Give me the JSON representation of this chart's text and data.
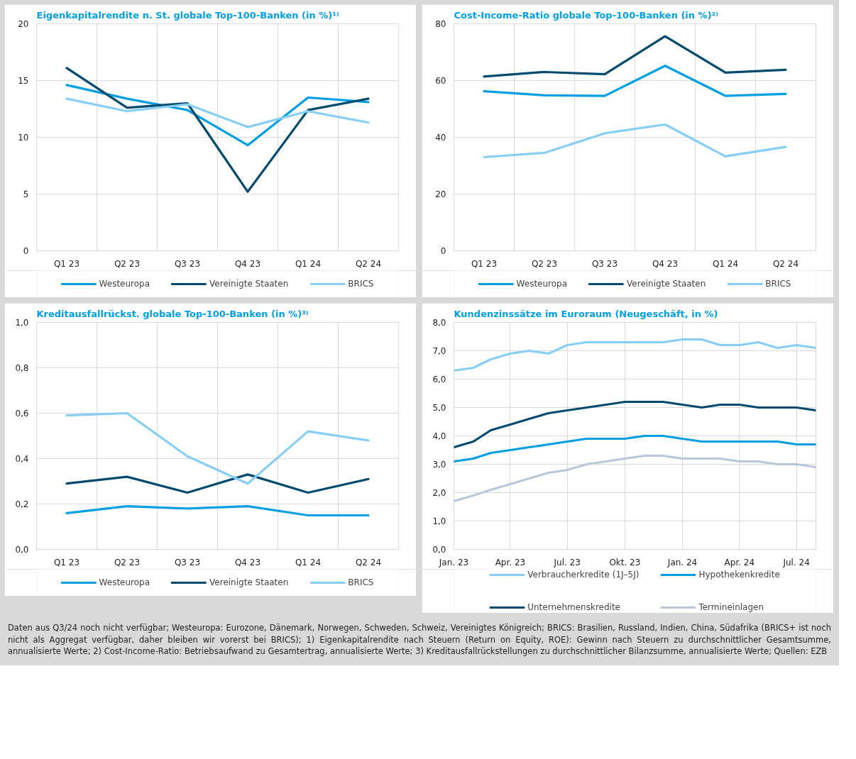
{
  "chart_data": [
    {
      "type": "line",
      "title": "Eigenkapitalrendite n. St. globale Top-100-Banken (in %)¹⁾",
      "categories": [
        "Q1 23",
        "Q2 23",
        "Q3 23",
        "Q4 23",
        "Q1 24",
        "Q2 24"
      ],
      "ylim": [
        0,
        20
      ],
      "yticks": [
        0,
        5,
        10,
        15,
        20
      ],
      "grid": true,
      "legend": "bottom",
      "marker": "none",
      "line_style": "solid",
      "series": [
        {
          "name": "Westeuropa",
          "color": "#009fe3",
          "values": [
            14.6,
            13.4,
            12.4,
            9.3,
            13.5,
            13.1
          ]
        },
        {
          "name": "Vereinigte Staaten",
          "color": "#004a6e",
          "values": [
            16.1,
            12.6,
            13.0,
            5.2,
            12.4,
            13.4
          ]
        },
        {
          "name": "BRICS",
          "color": "#87cef5",
          "values": [
            13.4,
            12.3,
            12.9,
            10.9,
            12.3,
            11.3
          ]
        }
      ]
    },
    {
      "type": "line",
      "title": "Cost-Income-Ratio globale Top-100-Banken (in %)²⁾",
      "categories": [
        "Q1 23",
        "Q2 23",
        "Q3 23",
        "Q4 23",
        "Q1 24",
        "Q2 24"
      ],
      "ylim": [
        0,
        80
      ],
      "yticks": [
        0,
        20,
        40,
        60,
        80
      ],
      "grid": true,
      "legend": "bottom",
      "marker": "none",
      "line_style": "solid",
      "series": [
        {
          "name": "Westeuropa",
          "color": "#009fe3",
          "values": [
            56.2,
            54.8,
            54.6,
            65.2,
            54.6,
            55.3
          ]
        },
        {
          "name": "Vereinigte Staaten",
          "color": "#004a6e",
          "values": [
            61.4,
            63.0,
            62.2,
            75.6,
            62.8,
            63.8
          ]
        },
        {
          "name": "BRICS",
          "color": "#87cef5",
          "values": [
            33.0,
            34.5,
            41.4,
            44.5,
            33.3,
            36.6
          ]
        }
      ]
    },
    {
      "type": "line",
      "title": "Kreditausfallrückst. globale Top-100-Banken (in %)³⁾",
      "categories": [
        "Q1 23",
        "Q2 23",
        "Q3 23",
        "Q4 23",
        "Q1 24",
        "Q2 24"
      ],
      "ylim": [
        0,
        1
      ],
      "yticks": [
        {
          "value": 0,
          "label": "0,0"
        },
        {
          "value": 0.2,
          "label": "0,2"
        },
        {
          "value": 0.4,
          "label": "0,4"
        },
        {
          "value": 0.6,
          "label": "0,6"
        },
        {
          "value": 0.8,
          "label": "0,8"
        },
        {
          "value": 1,
          "label": "1,0"
        }
      ],
      "grid": true,
      "legend": "bottom",
      "marker": "none",
      "line_style": "solid",
      "series": [
        {
          "name": "Westeuropa",
          "color": "#009fe3",
          "values": [
            0.16,
            0.19,
            0.18,
            0.19,
            0.15,
            0.15
          ]
        },
        {
          "name": "Vereinigte Staaten",
          "color": "#004a6e",
          "values": [
            0.29,
            0.32,
            0.25,
            0.33,
            0.25,
            0.31
          ]
        },
        {
          "name": "BRICS",
          "color": "#87cef5",
          "values": [
            0.59,
            0.6,
            0.41,
            0.29,
            0.52,
            0.48
          ]
        }
      ]
    },
    {
      "type": "line",
      "title": "Kundenzinssätze im Euroraum (Neugeschäft, in %)",
      "x": [
        "2023-01",
        "2023-02",
        "2023-03",
        "2023-04",
        "2023-05",
        "2023-06",
        "2023-07",
        "2023-08",
        "2023-09",
        "2023-10",
        "2023-11",
        "2023-12",
        "2024-01",
        "2024-02",
        "2024-03",
        "2024-04",
        "2024-05",
        "2024-06",
        "2024-07",
        "2024-08"
      ],
      "xlim": [
        "2023-01",
        "2024-08"
      ],
      "xticks": [
        {
          "value": "2023-01",
          "label": "Jan. 23"
        },
        {
          "value": "2023-04",
          "label": "Apr. 23"
        },
        {
          "value": "2023-07",
          "label": "Jul. 23"
        },
        {
          "value": "2023-10",
          "label": "Okt. 23"
        },
        {
          "value": "2024-01",
          "label": "Jan. 24"
        },
        {
          "value": "2024-04",
          "label": "Apr. 24"
        },
        {
          "value": "2024-07",
          "label": "Jul. 24"
        }
      ],
      "ylim": [
        0,
        8
      ],
      "yticks": [
        {
          "value": 0,
          "label": "0,0"
        },
        {
          "value": 1,
          "label": "1,0"
        },
        {
          "value": 2,
          "label": "2,0"
        },
        {
          "value": 3,
          "label": "3,0"
        },
        {
          "value": 4,
          "label": "4,0"
        },
        {
          "value": 5,
          "label": "5,0"
        },
        {
          "value": 6,
          "label": "6,0"
        },
        {
          "value": 7,
          "label": "7,0"
        },
        {
          "value": 8,
          "label": "8,0"
        }
      ],
      "grid": true,
      "legend": "bottom",
      "marker": "none",
      "line_style": "solid",
      "series": [
        {
          "name": "Verbraucherkredite (1J–5J)",
          "color": "#87cef5",
          "values": [
            6.3,
            6.4,
            6.7,
            6.9,
            7.0,
            6.9,
            7.2,
            7.3,
            7.3,
            7.3,
            7.3,
            7.3,
            7.4,
            7.4,
            7.2,
            7.2,
            7.3,
            7.1,
            7.2,
            7.1
          ]
        },
        {
          "name": "Hypothekenkredite",
          "color": "#009fe3",
          "values": [
            3.1,
            3.2,
            3.4,
            3.5,
            3.6,
            3.7,
            3.8,
            3.9,
            3.9,
            3.9,
            4.0,
            4.0,
            3.9,
            3.8,
            3.8,
            3.8,
            3.8,
            3.8,
            3.7,
            3.7
          ]
        },
        {
          "name": "Unternehmenskredite",
          "color": "#004a6e",
          "values": [
            3.6,
            3.8,
            4.2,
            4.4,
            4.6,
            4.8,
            4.9,
            5.0,
            5.1,
            5.2,
            5.2,
            5.2,
            5.1,
            5.0,
            5.1,
            5.1,
            5.0,
            5.0,
            5.0,
            4.9
          ]
        },
        {
          "name": "Termineinlagen",
          "color": "#b8c7d9",
          "values": [
            1.7,
            1.9,
            2.1,
            2.3,
            2.5,
            2.7,
            2.8,
            3.0,
            3.1,
            3.2,
            3.3,
            3.3,
            3.2,
            3.2,
            3.2,
            3.1,
            3.1,
            3.0,
            3.0,
            2.9
          ]
        }
      ],
      "annotations": [
        "Daten aus Q3/24 noch nicht verfügbar; Westeuropa: Eurozone, Dänemark, Norwegen, Schweden, Schweiz, Vereinigtes Königreich; BRICS: Brasilien, Russland, Indien, China, Südafrika (BRICS+ ist noch nicht als Aggregat verfügbar, daher bleiben wir vorerst bei BRICS); 1) Eigenkapitalrendite nach Steuern (Return on Equity, ROE): Gewinn nach Steuern zu durchschnittlicher Gesamtsumme, annualisierte Werte; 2) Cost-Income-Ratio: Betriebsaufwand zu Gesamtertrag, annualisierte Werte; 3) Kreditausfallrückstellungen zu durchschnittlicher Bilanzsumme, annualisierte Werte; Quellen: EZB"
      ]
    }
  ]
}
